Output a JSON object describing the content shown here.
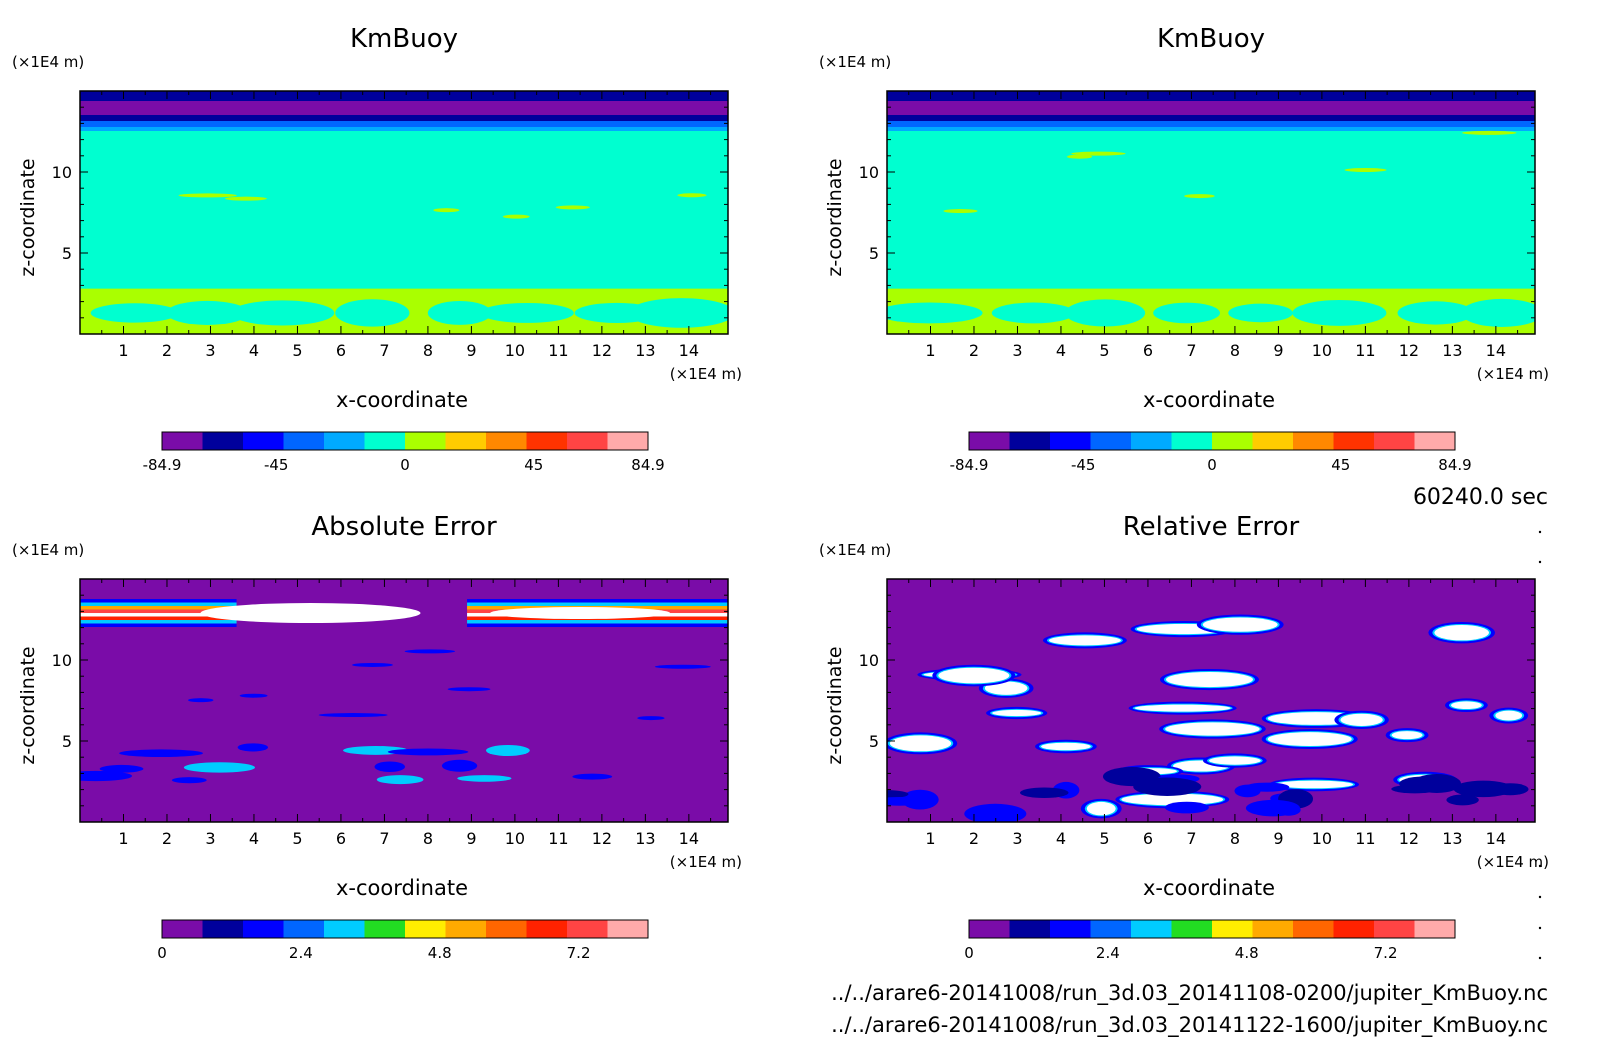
{
  "chart_data": [
    {
      "type": "heatmap",
      "title": "KmBuoy",
      "xlabel": "x-coordinate",
      "ylabel": "z-coordinate",
      "x_unit": "(×1E4 m)",
      "y_unit": "(×1E4 m)",
      "xlim": [
        0,
        14.9
      ],
      "ylim": [
        0,
        15
      ],
      "x_ticks": [
        "1",
        "2",
        "3",
        "4",
        "5",
        "6",
        "7",
        "8",
        "9",
        "10",
        "11",
        "12",
        "13",
        "14"
      ],
      "y_ticks": [
        "5",
        "10"
      ],
      "colorbar": {
        "min": -84.9,
        "max": 84.9,
        "tick_labels": [
          "-84.9",
          "-45",
          "0",
          "45",
          "84.9"
        ],
        "colors": [
          "#7a0ca8",
          "#00009c",
          "#0000ff",
          "#0066ff",
          "#00aaff",
          "#00ffd0",
          "#aaff00",
          "#ffcc00",
          "#ff8800",
          "#ff3300",
          "#ff4444",
          "#ffaaaa"
        ]
      }
    },
    {
      "type": "heatmap",
      "title": "KmBuoy",
      "xlabel": "x-coordinate",
      "ylabel": "z-coordinate",
      "x_unit": "(×1E4 m)",
      "y_unit": "(×1E4 m)",
      "xlim": [
        0,
        14.9
      ],
      "ylim": [
        0,
        15
      ],
      "x_ticks": [
        "1",
        "2",
        "3",
        "4",
        "5",
        "6",
        "7",
        "8",
        "9",
        "10",
        "11",
        "12",
        "13",
        "14"
      ],
      "y_ticks": [
        "5",
        "10"
      ],
      "colorbar": {
        "min": -84.9,
        "max": 84.9,
        "tick_labels": [
          "-84.9",
          "-45",
          "0",
          "45",
          "84.9"
        ],
        "colors": [
          "#7a0ca8",
          "#00009c",
          "#0000ff",
          "#0066ff",
          "#00aaff",
          "#00ffd0",
          "#aaff00",
          "#ffcc00",
          "#ff8800",
          "#ff3300",
          "#ff4444",
          "#ffaaaa"
        ]
      }
    },
    {
      "type": "heatmap",
      "title": "Absolute Error",
      "xlabel": "x-coordinate",
      "ylabel": "z-coordinate",
      "x_unit": "(×1E4 m)",
      "y_unit": "(×1E4 m)",
      "xlim": [
        0,
        14.9
      ],
      "ylim": [
        0,
        15
      ],
      "x_ticks": [
        "1",
        "2",
        "3",
        "4",
        "5",
        "6",
        "7",
        "8",
        "9",
        "10",
        "11",
        "12",
        "13",
        "14"
      ],
      "y_ticks": [
        "5",
        "10"
      ],
      "colorbar": {
        "min": 0,
        "max": 8.4,
        "tick_labels": [
          "0",
          "2.4",
          "4.8",
          "7.2"
        ],
        "colors": [
          "#7a0ca8",
          "#00009c",
          "#0000ff",
          "#0066ff",
          "#00ccff",
          "#22dd22",
          "#ffee00",
          "#ffaa00",
          "#ff6600",
          "#ff2200",
          "#ff4444",
          "#ffaaaa"
        ]
      }
    },
    {
      "type": "heatmap",
      "title": "Relative Error",
      "xlabel": "x-coordinate",
      "ylabel": "z-coordinate",
      "x_unit": "(×1E4 m)",
      "y_unit": "(×1E4 m)",
      "xlim": [
        0,
        14.9
      ],
      "ylim": [
        0,
        15
      ],
      "x_ticks": [
        "1",
        "2",
        "3",
        "4",
        "5",
        "6",
        "7",
        "8",
        "9",
        "10",
        "11",
        "12",
        "13",
        "14"
      ],
      "y_ticks": [
        "5",
        "10"
      ],
      "colorbar": {
        "min": 0,
        "max": 8.4,
        "tick_labels": [
          "0",
          "2.4",
          "4.8",
          "7.2"
        ],
        "colors": [
          "#7a0ca8",
          "#00009c",
          "#0000ff",
          "#0066ff",
          "#00ccff",
          "#22dd22",
          "#ffee00",
          "#ffaa00",
          "#ff6600",
          "#ff2200",
          "#ff4444",
          "#ffaaaa"
        ]
      }
    }
  ],
  "time_label": "60240.0 sec",
  "file_paths": [
    "../../arare6-20141008/run_3d.03_20141108-0200/jupiter_KmBuoy.nc",
    "../../arare6-20141008/run_3d.03_20141122-1600/jupiter_KmBuoy.nc"
  ]
}
